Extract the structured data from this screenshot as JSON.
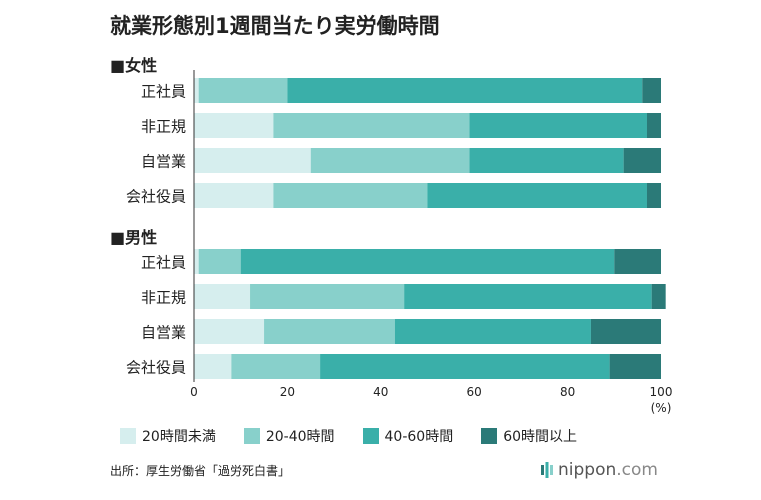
{
  "title": "就業形態別1週間当たり実労働時間",
  "source": "出所：厚生労働省「過労死白書」",
  "brand": {
    "name": "nippon",
    "suffix": ".com"
  },
  "colors": {
    "band_20_under": "#d6eeee",
    "band_20_40": "#88d0cb",
    "band_40_60": "#3aafa9",
    "band_60_over": "#2b7a78",
    "axis": "#333333"
  },
  "chart_data": {
    "type": "bar",
    "orientation": "horizontal",
    "stacked": true,
    "title": "就業形態別1週間当たり実労働時間",
    "xlabel": "(%)",
    "xlim": [
      0,
      100
    ],
    "xticks": [
      0,
      20,
      40,
      60,
      80,
      100
    ],
    "legend": [
      "20時間未満",
      "20-40時間",
      "40-60時間",
      "60時間以上"
    ],
    "legend_position": "bottom",
    "groups": [
      {
        "name": "■女性",
        "categories": [
          "正社員",
          "非正規",
          "自営業",
          "会社役員"
        ],
        "series": [
          {
            "name": "20時間未満",
            "values": [
              1,
              17,
              25,
              17
            ]
          },
          {
            "name": "20-40時間",
            "values": [
              19,
              42,
              34,
              33
            ]
          },
          {
            "name": "40-60時間",
            "values": [
              76,
              38,
              33,
              47
            ]
          },
          {
            "name": "60時間以上",
            "values": [
              4,
              3,
              8,
              3
            ]
          }
        ]
      },
      {
        "name": "■男性",
        "categories": [
          "正社員",
          "非正規",
          "自営業",
          "会社役員"
        ],
        "series": [
          {
            "name": "20時間未満",
            "values": [
              1,
              12,
              15,
              8
            ]
          },
          {
            "name": "20-40時間",
            "values": [
              9,
              33,
              28,
              19
            ]
          },
          {
            "name": "40-60時間",
            "values": [
              80,
              53,
              42,
              62
            ]
          },
          {
            "name": "60時間以上",
            "values": [
              10,
              3,
              15,
              11
            ]
          }
        ]
      }
    ]
  }
}
